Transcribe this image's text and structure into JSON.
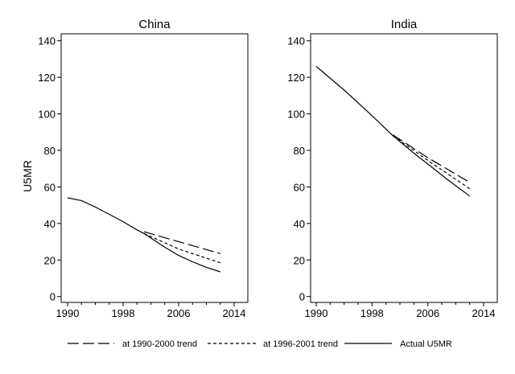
{
  "chart_data": [
    {
      "type": "line",
      "title": "China",
      "xlabel": "",
      "ylabel": "U5MR",
      "xlim": [
        1989,
        2015.5
      ],
      "ylim": [
        -3,
        143
      ],
      "xticks": [
        1990,
        1998,
        2006,
        2014
      ],
      "yticks": [
        0,
        20,
        40,
        60,
        80,
        100,
        120,
        140
      ],
      "grid": false,
      "series": [
        {
          "name": "Actual U5MR",
          "style": "solid",
          "x": [
            1990,
            1992,
            1994,
            1996,
            1998,
            2000,
            2001,
            2002,
            2004,
            2006,
            2008,
            2010,
            2012
          ],
          "y": [
            54,
            52.5,
            49,
            45,
            41,
            36.5,
            34.5,
            32,
            27,
            22.5,
            19,
            16,
            13.5
          ]
        },
        {
          "name": "at 1990-2000 trend",
          "style": "dashed",
          "x": [
            2001,
            2012
          ],
          "y": [
            35.5,
            23.5
          ]
        },
        {
          "name": "at 1996-2001 trend",
          "style": "dotted",
          "x": [
            2001,
            2006,
            2012
          ],
          "y": [
            34.5,
            26,
            18.5
          ]
        }
      ]
    },
    {
      "type": "line",
      "title": "India",
      "xlabel": "",
      "ylabel": "",
      "xlim": [
        1989,
        2015.5
      ],
      "ylim": [
        -3,
        143
      ],
      "xticks": [
        1990,
        1998,
        2006,
        2014
      ],
      "yticks": [
        0,
        20,
        40,
        60,
        80,
        100,
        120,
        140
      ],
      "grid": false,
      "series": [
        {
          "name": "Actual U5MR",
          "style": "solid",
          "x": [
            1990,
            1994,
            1998,
            2001,
            2004,
            2006,
            2009,
            2012
          ],
          "y": [
            126,
            113,
            99,
            88,
            78.5,
            72.5,
            63.5,
            55
          ]
        },
        {
          "name": "at 1990-2000 trend",
          "style": "dashed",
          "x": [
            2001,
            2006,
            2012
          ],
          "y": [
            88.5,
            76,
            62.5
          ]
        },
        {
          "name": "at 1996-2001 trend",
          "style": "dotted",
          "x": [
            2001,
            2006,
            2012
          ],
          "y": [
            88,
            74.5,
            59
          ]
        }
      ]
    }
  ],
  "legend": {
    "position": "bottom",
    "items": [
      {
        "label": "at 1990-2000 trend",
        "style": "dashed"
      },
      {
        "label": "at 1996-2001 trend",
        "style": "dotted"
      },
      {
        "label": "Actual U5MR",
        "style": "solid"
      }
    ]
  }
}
